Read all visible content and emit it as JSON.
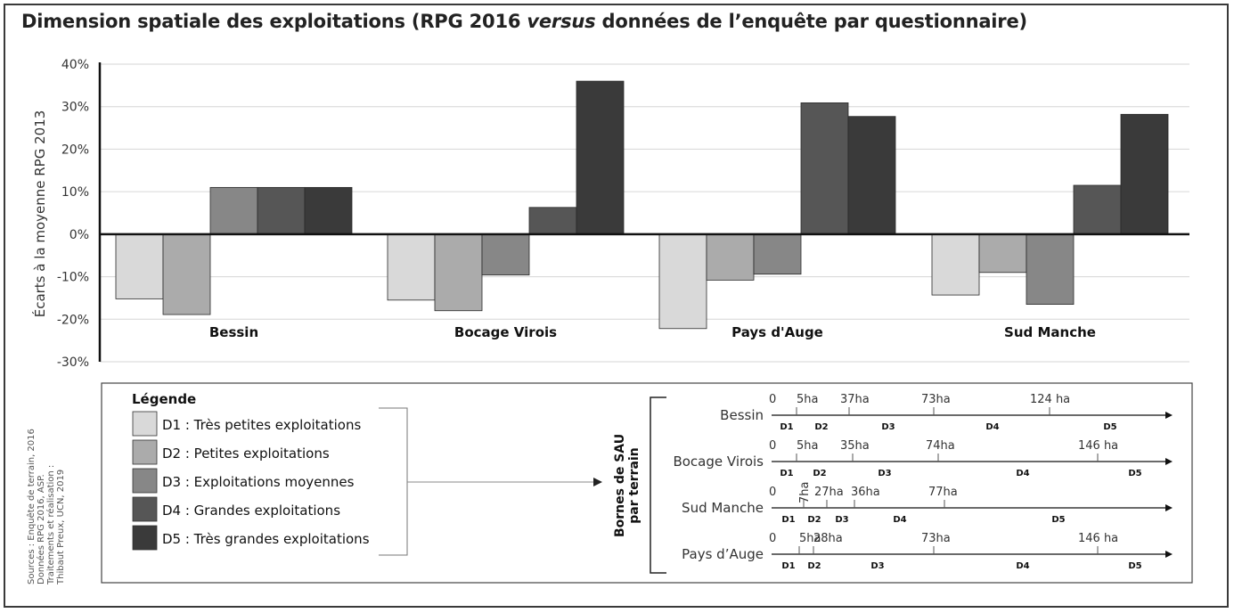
{
  "title": {
    "part1": "Dimension spatiale des exploitations (RPG 2016 ",
    "italic": "versus",
    "part2": " données de l’enquête par questionnaire)"
  },
  "chart_data": {
    "type": "bar",
    "title": "Dimension spatiale des exploitations (RPG 2016 versus données de l’enquête par questionnaire)",
    "ylabel": "Écarts à la moyenne RPG 2013",
    "ylim": [
      -30,
      40
    ],
    "yticks": [
      "40%",
      "30%",
      "20%",
      "10%",
      "0%",
      "-10%",
      "-20%",
      "-30%"
    ],
    "ytick_values": [
      40,
      30,
      20,
      10,
      0,
      -10,
      -20,
      -30
    ],
    "grid": true,
    "categories": [
      "Bessin",
      "Bocage Virois",
      "Pays d'Auge",
      "Sud Manche"
    ],
    "series": [
      {
        "name": "D1 : Très petites exploitations",
        "color": "#d9d9d9",
        "values": [
          -15.2,
          -15.5,
          -22.2,
          -14.3
        ]
      },
      {
        "name": "D2 : Petites exploitations",
        "color": "#ababab",
        "values": [
          -18.9,
          -18.0,
          -10.8,
          -9.0
        ]
      },
      {
        "name": "D3 : Exploitations moyennes",
        "color": "#878787",
        "values": [
          11.0,
          -9.6,
          -9.4,
          -16.5
        ]
      },
      {
        "name": "D4 : Grandes exploitations",
        "color": "#565656",
        "values": [
          11.0,
          6.3,
          30.9,
          11.5
        ]
      },
      {
        "name": "D5 : Très grandes exploitations",
        "color": "#3a3a3a",
        "values": [
          11.0,
          36.0,
          27.7,
          28.2
        ]
      }
    ]
  },
  "legend": {
    "title": "Légende"
  },
  "bornes": {
    "label_line1": "Bornes de SAU",
    "label_line2": "par terrain",
    "rows": [
      {
        "name": "Bessin",
        "zero": "0",
        "ticks": [
          {
            "ha": 5,
            "label": "5ha"
          },
          {
            "ha": 37,
            "label": "37ha"
          },
          {
            "ha": 73,
            "label": "73ha"
          },
          {
            "ha": 124,
            "label": "124 ha"
          }
        ],
        "classes": [
          "D1",
          "D2",
          "D3",
          "D4",
          "D5"
        ]
      },
      {
        "name": "Bocage Virois",
        "zero": "0",
        "ticks": [
          {
            "ha": 5,
            "label": "5ha"
          },
          {
            "ha": 35,
            "label": "35ha"
          },
          {
            "ha": 74,
            "label": "74ha"
          },
          {
            "ha": 146,
            "label": "146 ha"
          }
        ],
        "classes": [
          "D1",
          "D2",
          "D3",
          "D4",
          "D5"
        ]
      },
      {
        "name": "Sud Manche",
        "zero": "0",
        "ticks": [
          {
            "ha": 7,
            "label": "7ha"
          },
          {
            "ha": 27,
            "label": "27ha"
          },
          {
            "ha": 36,
            "label": "36ha"
          },
          {
            "ha": 77,
            "label": "77ha"
          }
        ],
        "classes": [
          "D1",
          "D2",
          "D3",
          "D4",
          "D5"
        ]
      },
      {
        "name": "Pays d’Auge",
        "zero": "0",
        "ticks": [
          {
            "ha": 5,
            "label": "5ha"
          },
          {
            "ha": 28,
            "label": "28ha"
          },
          {
            "ha": 73,
            "label": "73ha"
          },
          {
            "ha": 146,
            "label": "146 ha"
          }
        ],
        "classes": [
          "D1",
          "D2",
          "D3",
          "D4",
          "D5"
        ]
      }
    ]
  },
  "sources": [
    "Sources : Enquête de terrain, 2016",
    "Données RPG 2016, ASP.",
    "Traitements et réalisation :",
    "Thibaut Preux, UCN, 2019"
  ]
}
